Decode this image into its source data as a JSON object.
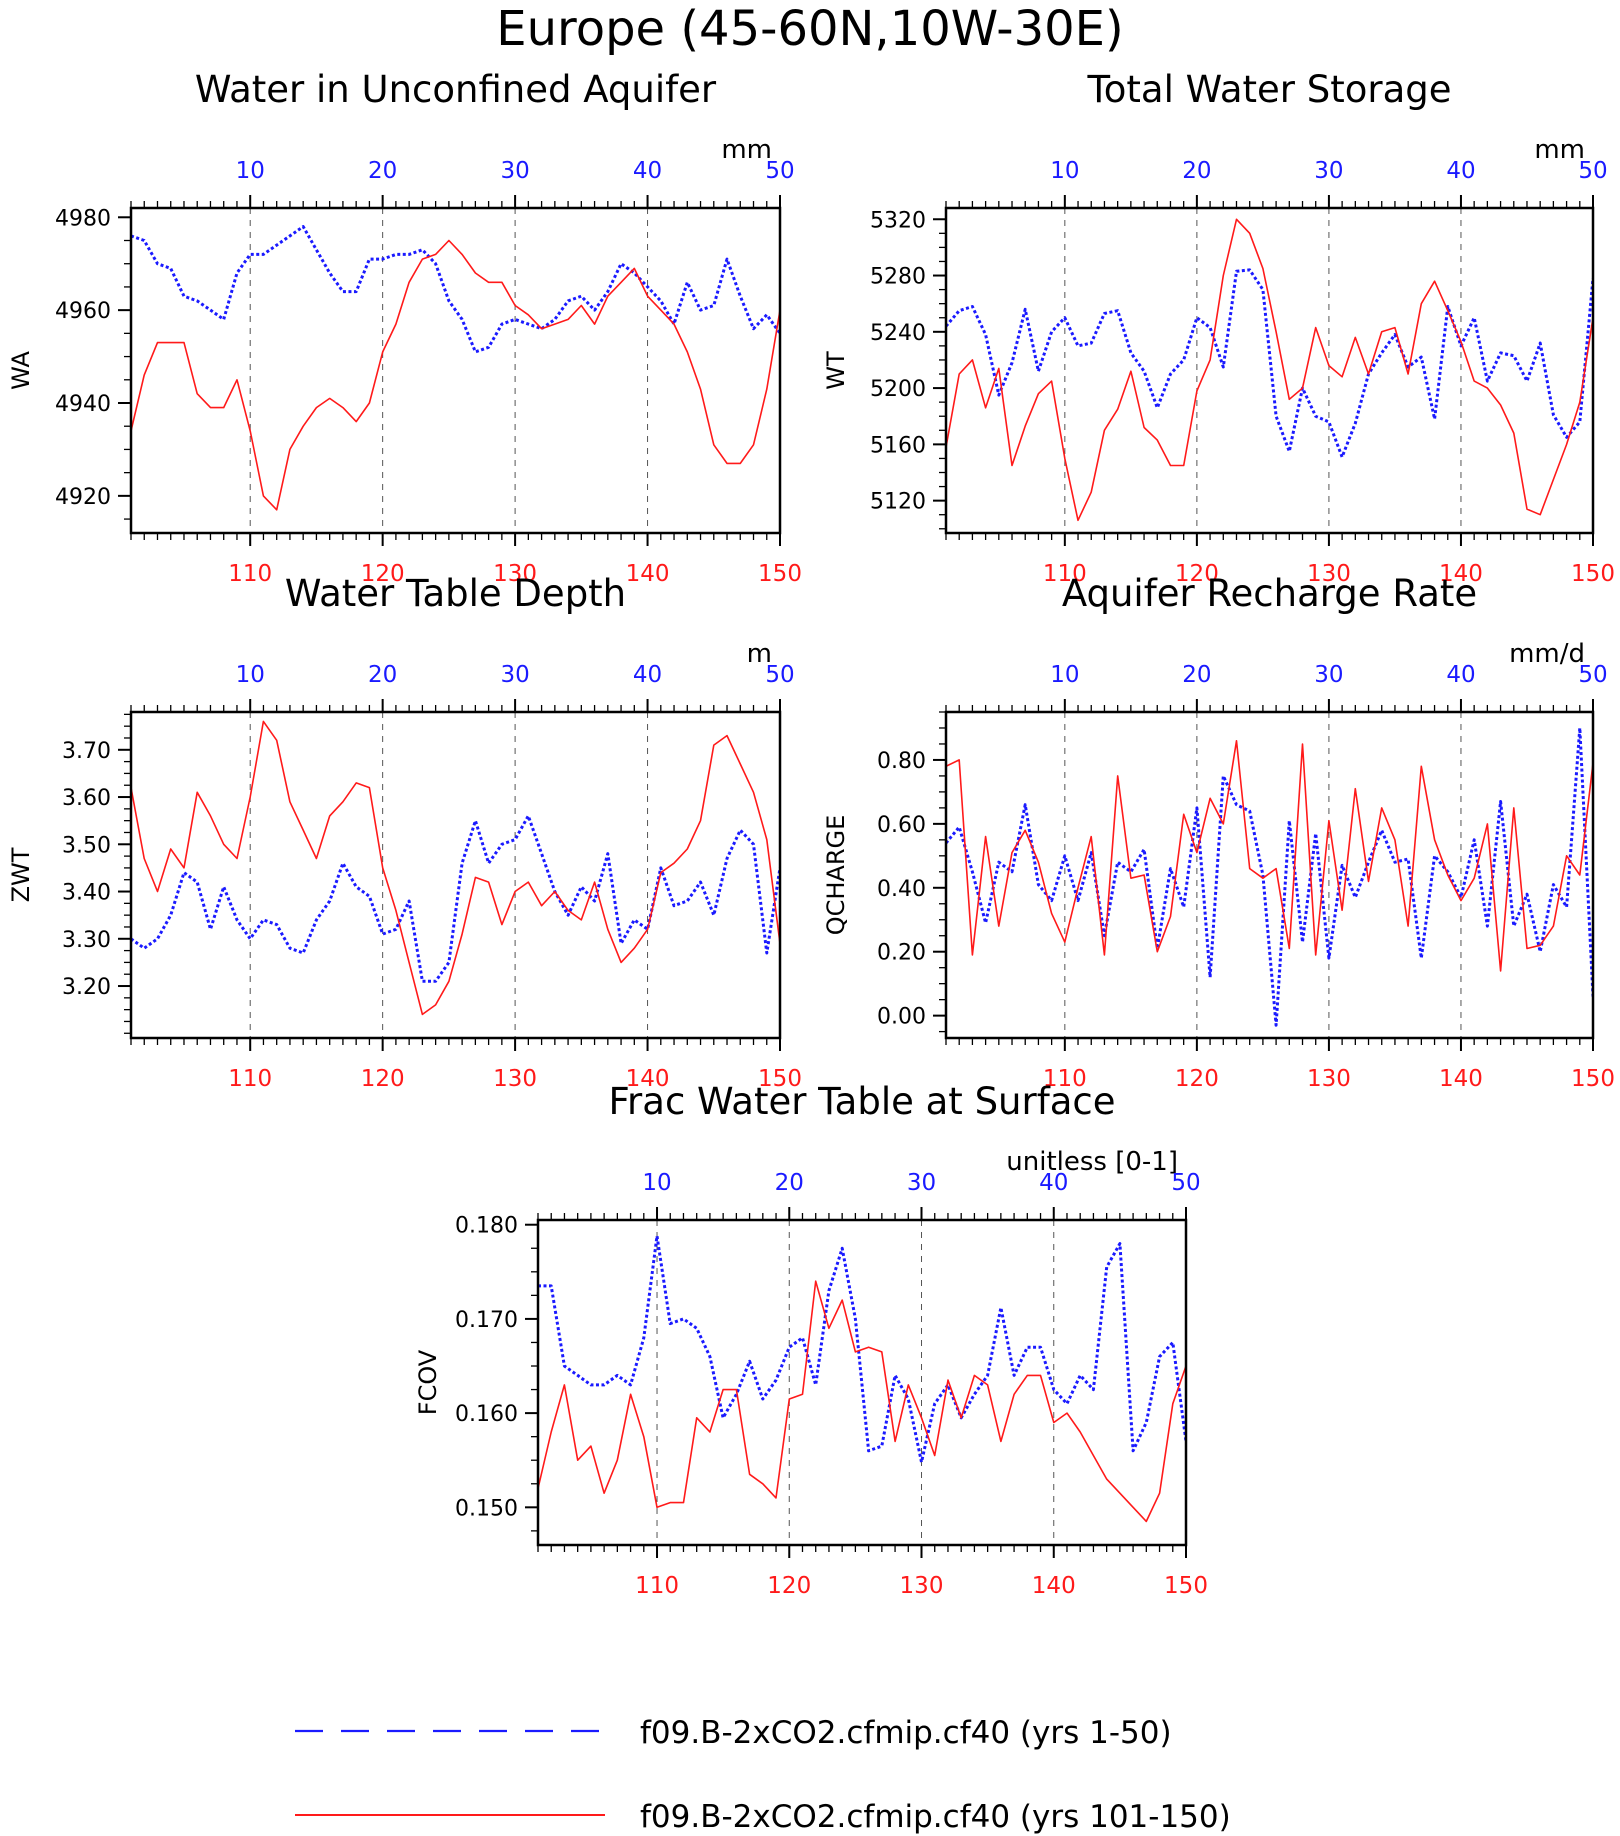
{
  "page": {
    "title": "Europe (45-60N,10W-30E)"
  },
  "colors": {
    "blue": "#1a1aff",
    "red": "#ff1a1a",
    "axis": "#000000",
    "grid": "#555555"
  },
  "legend": {
    "items": [
      {
        "label": "f09.B-2xCO2.cfmip.cf40 (yrs 1-50)",
        "color": "#1a1aff",
        "style": "dashed"
      },
      {
        "label": "f09.B-2xCO2.cfmip.cf40 (yrs 101-150)",
        "color": "#ff1a1a",
        "style": "solid"
      }
    ]
  },
  "chart_data": [
    {
      "type": "line",
      "title": "Water in Unconfined Aquifer",
      "units": "mm",
      "ylabel": "WA",
      "ylim": [
        4912,
        4982
      ],
      "yticks": [
        4920,
        4940,
        4960,
        4980
      ],
      "ytick_labels": [
        "4920",
        "4940",
        "4960",
        "4980"
      ],
      "top_x": {
        "range": [
          1,
          50
        ],
        "ticks": [
          10,
          20,
          30,
          40,
          50
        ],
        "labels": [
          "10",
          "20",
          "30",
          "40",
          "50"
        ]
      },
      "bottom_x": {
        "range": [
          101,
          150
        ],
        "ticks": [
          110,
          120,
          130,
          140,
          150
        ],
        "labels": [
          "110",
          "120",
          "130",
          "140",
          "150"
        ]
      },
      "grid": "vertical dashed at major ticks",
      "series": [
        {
          "color": "blue",
          "style": "dotted",
          "x_axis": "top",
          "values": [
            4976,
            4975,
            4970,
            4969,
            4963,
            4962,
            4960,
            4958,
            4968,
            4972,
            4972,
            4974,
            4976,
            4978,
            4973,
            4968,
            4964,
            4964,
            4971,
            4971,
            4972,
            4972,
            4973,
            4970,
            4962,
            4958,
            4951,
            4952,
            4957,
            4958,
            4957,
            4956,
            4958,
            4962,
            4963,
            4960,
            4964,
            4970,
            4968,
            4965,
            4962,
            4957,
            4966,
            4960,
            4961,
            4971,
            4963,
            4956,
            4959,
            4955
          ]
        },
        {
          "color": "red",
          "style": "solid",
          "x_axis": "bottom",
          "values": [
            4934,
            4946,
            4953,
            4953,
            4953,
            4942,
            4939,
            4939,
            4945,
            4934,
            4920,
            4917,
            4930,
            4935,
            4939,
            4941,
            4939,
            4936,
            4940,
            4951,
            4957,
            4966,
            4971,
            4972,
            4975,
            4972,
            4968,
            4966,
            4966,
            4961,
            4959,
            4956,
            4957,
            4958,
            4961,
            4957,
            4963,
            4966,
            4969,
            4963,
            4960,
            4957,
            4951,
            4943,
            4931,
            4927,
            4927,
            4931,
            4943,
            4960
          ]
        }
      ]
    },
    {
      "type": "line",
      "title": "Total Water Storage",
      "units": "mm",
      "ylabel": "WT",
      "ylim": [
        5097,
        5328
      ],
      "yticks": [
        5120,
        5160,
        5200,
        5240,
        5280,
        5320
      ],
      "ytick_labels": [
        "5120",
        "5160",
        "5200",
        "5240",
        "5280",
        "5320"
      ],
      "top_x": {
        "range": [
          1,
          50
        ],
        "ticks": [
          10,
          20,
          30,
          40,
          50
        ],
        "labels": [
          "10",
          "20",
          "30",
          "40",
          "50"
        ]
      },
      "bottom_x": {
        "range": [
          101,
          150
        ],
        "ticks": [
          110,
          120,
          130,
          140,
          150
        ],
        "labels": [
          "110",
          "120",
          "130",
          "140",
          "150"
        ]
      },
      "grid": "vertical dashed at major ticks",
      "series": [
        {
          "color": "blue",
          "style": "dotted",
          "x_axis": "top",
          "values": [
            5244,
            5255,
            5258,
            5238,
            5195,
            5218,
            5256,
            5212,
            5240,
            5250,
            5230,
            5232,
            5253,
            5255,
            5225,
            5212,
            5186,
            5210,
            5220,
            5250,
            5243,
            5215,
            5283,
            5284,
            5270,
            5180,
            5155,
            5200,
            5180,
            5176,
            5151,
            5175,
            5210,
            5225,
            5238,
            5215,
            5222,
            5178,
            5258,
            5230,
            5250,
            5205,
            5225,
            5223,
            5205,
            5232,
            5181,
            5165,
            5176,
            5278
          ]
        },
        {
          "color": "red",
          "style": "solid",
          "x_axis": "bottom",
          "values": [
            5158,
            5210,
            5220,
            5186,
            5214,
            5145,
            5173,
            5196,
            5205,
            5150,
            5106,
            5126,
            5170,
            5185,
            5212,
            5172,
            5163,
            5145,
            5145,
            5198,
            5220,
            5280,
            5320,
            5310,
            5285,
            5240,
            5192,
            5200,
            5243,
            5216,
            5208,
            5236,
            5210,
            5240,
            5243,
            5210,
            5260,
            5276,
            5255,
            5233,
            5205,
            5200,
            5188,
            5168,
            5114,
            5110,
            5135,
            5160,
            5190,
            5250
          ]
        }
      ]
    },
    {
      "type": "line",
      "title": "Water Table Depth",
      "units": "m",
      "ylabel": "ZWT",
      "ylim": [
        3.09,
        3.78
      ],
      "yticks": [
        3.2,
        3.3,
        3.4,
        3.5,
        3.6,
        3.7
      ],
      "ytick_labels": [
        "3.20",
        "3.30",
        "3.40",
        "3.50",
        "3.60",
        "3.70"
      ],
      "top_x": {
        "range": [
          1,
          50
        ],
        "ticks": [
          10,
          20,
          30,
          40,
          50
        ],
        "labels": [
          "10",
          "20",
          "30",
          "40",
          "50"
        ]
      },
      "bottom_x": {
        "range": [
          101,
          150
        ],
        "ticks": [
          110,
          120,
          130,
          140,
          150
        ],
        "labels": [
          "110",
          "120",
          "130",
          "140",
          "150"
        ]
      },
      "grid": "vertical dashed at major ticks",
      "series": [
        {
          "color": "blue",
          "style": "dotted",
          "x_axis": "top",
          "values": [
            3.3,
            3.28,
            3.3,
            3.35,
            3.44,
            3.42,
            3.32,
            3.41,
            3.34,
            3.3,
            3.34,
            3.33,
            3.28,
            3.27,
            3.34,
            3.38,
            3.46,
            3.41,
            3.39,
            3.31,
            3.32,
            3.38,
            3.21,
            3.21,
            3.25,
            3.46,
            3.55,
            3.46,
            3.5,
            3.51,
            3.56,
            3.48,
            3.4,
            3.35,
            3.41,
            3.38,
            3.48,
            3.29,
            3.34,
            3.32,
            3.45,
            3.37,
            3.38,
            3.42,
            3.35,
            3.47,
            3.53,
            3.5,
            3.27,
            3.45
          ]
        },
        {
          "color": "red",
          "style": "solid",
          "x_axis": "bottom",
          "values": [
            3.62,
            3.47,
            3.4,
            3.49,
            3.45,
            3.61,
            3.56,
            3.5,
            3.47,
            3.6,
            3.76,
            3.72,
            3.59,
            3.53,
            3.47,
            3.56,
            3.59,
            3.63,
            3.62,
            3.45,
            3.36,
            3.25,
            3.14,
            3.16,
            3.21,
            3.31,
            3.43,
            3.42,
            3.33,
            3.4,
            3.42,
            3.37,
            3.4,
            3.36,
            3.34,
            3.42,
            3.32,
            3.25,
            3.28,
            3.32,
            3.44,
            3.46,
            3.49,
            3.55,
            3.71,
            3.73,
            3.67,
            3.61,
            3.51,
            3.29
          ]
        }
      ]
    },
    {
      "type": "line",
      "title": "Aquifer Recharge Rate",
      "units": "mm/d",
      "ylabel": "QCHARGE",
      "ylim": [
        -0.07,
        0.95
      ],
      "yticks": [
        0.0,
        0.2,
        0.4,
        0.6,
        0.8
      ],
      "ytick_labels": [
        "0.00",
        "0.20",
        "0.40",
        "0.60",
        "0.80"
      ],
      "top_x": {
        "range": [
          1,
          50
        ],
        "ticks": [
          10,
          20,
          30,
          40,
          50
        ],
        "labels": [
          "10",
          "20",
          "30",
          "40",
          "50"
        ]
      },
      "bottom_x": {
        "range": [
          101,
          150
        ],
        "ticks": [
          110,
          120,
          130,
          140,
          150
        ],
        "labels": [
          "110",
          "120",
          "130",
          "140",
          "150"
        ]
      },
      "grid": "vertical dashed at major ticks",
      "series": [
        {
          "color": "blue",
          "style": "dotted",
          "x_axis": "top",
          "values": [
            0.54,
            0.59,
            0.45,
            0.29,
            0.48,
            0.45,
            0.66,
            0.41,
            0.36,
            0.5,
            0.36,
            0.51,
            0.25,
            0.48,
            0.45,
            0.52,
            0.21,
            0.46,
            0.34,
            0.65,
            0.12,
            0.75,
            0.66,
            0.64,
            0.44,
            -0.03,
            0.61,
            0.23,
            0.57,
            0.18,
            0.47,
            0.37,
            0.48,
            0.58,
            0.48,
            0.49,
            0.18,
            0.5,
            0.45,
            0.37,
            0.55,
            0.28,
            0.67,
            0.28,
            0.38,
            0.2,
            0.41,
            0.34,
            0.9,
            0.06
          ]
        },
        {
          "color": "red",
          "style": "solid",
          "x_axis": "bottom",
          "values": [
            0.78,
            0.8,
            0.19,
            0.56,
            0.28,
            0.51,
            0.58,
            0.48,
            0.32,
            0.23,
            0.4,
            0.56,
            0.19,
            0.75,
            0.43,
            0.44,
            0.2,
            0.31,
            0.63,
            0.51,
            0.68,
            0.6,
            0.86,
            0.46,
            0.43,
            0.46,
            0.21,
            0.85,
            0.19,
            0.61,
            0.33,
            0.71,
            0.42,
            0.65,
            0.55,
            0.28,
            0.78,
            0.55,
            0.44,
            0.36,
            0.43,
            0.6,
            0.14,
            0.65,
            0.21,
            0.22,
            0.28,
            0.5,
            0.44,
            0.79
          ]
        }
      ]
    },
    {
      "type": "line",
      "title": "Frac Water Table at Surface",
      "units": "unitless [0-1]",
      "ylabel": "FCOV",
      "ylim": [
        0.146,
        0.1805
      ],
      "yticks": [
        0.15,
        0.16,
        0.17,
        0.18
      ],
      "ytick_labels": [
        "0.150",
        "0.160",
        "0.170",
        "0.180"
      ],
      "top_x": {
        "range": [
          1,
          50
        ],
        "ticks": [
          10,
          20,
          30,
          40,
          50
        ],
        "labels": [
          "10",
          "20",
          "30",
          "40",
          "50"
        ]
      },
      "bottom_x": {
        "range": [
          101,
          150
        ],
        "ticks": [
          110,
          120,
          130,
          140,
          150
        ],
        "labels": [
          "110",
          "120",
          "130",
          "140",
          "150"
        ]
      },
      "grid": "vertical dashed at major ticks",
      "series": [
        {
          "color": "blue",
          "style": "dotted",
          "x_axis": "top",
          "values": [
            0.1735,
            0.1735,
            0.165,
            0.164,
            0.163,
            0.163,
            0.164,
            0.163,
            0.168,
            0.1788,
            0.1695,
            0.17,
            0.169,
            0.166,
            0.1595,
            0.162,
            0.1655,
            0.1615,
            0.1635,
            0.167,
            0.168,
            0.163,
            0.173,
            0.1775,
            0.17,
            0.156,
            0.1565,
            0.164,
            0.1615,
            0.1548,
            0.161,
            0.163,
            0.1595,
            0.162,
            0.164,
            0.1712,
            0.164,
            0.167,
            0.167,
            0.1625,
            0.161,
            0.164,
            0.1625,
            0.1755,
            0.178,
            0.156,
            0.159,
            0.166,
            0.1675,
            0.157
          ]
        },
        {
          "color": "red",
          "style": "solid",
          "x_axis": "bottom",
          "values": [
            0.152,
            0.158,
            0.163,
            0.155,
            0.1565,
            0.1515,
            0.155,
            0.162,
            0.1575,
            0.15,
            0.1505,
            0.1505,
            0.1595,
            0.158,
            0.1625,
            0.1625,
            0.1535,
            0.1525,
            0.151,
            0.1615,
            0.162,
            0.174,
            0.169,
            0.172,
            0.1665,
            0.167,
            0.1665,
            0.157,
            0.163,
            0.1595,
            0.1555,
            0.1635,
            0.1595,
            0.164,
            0.163,
            0.157,
            0.162,
            0.164,
            0.164,
            0.159,
            0.16,
            0.158,
            0.1555,
            0.153,
            0.1515,
            0.15,
            0.1485,
            0.1515,
            0.161,
            0.165
          ]
        }
      ]
    }
  ]
}
